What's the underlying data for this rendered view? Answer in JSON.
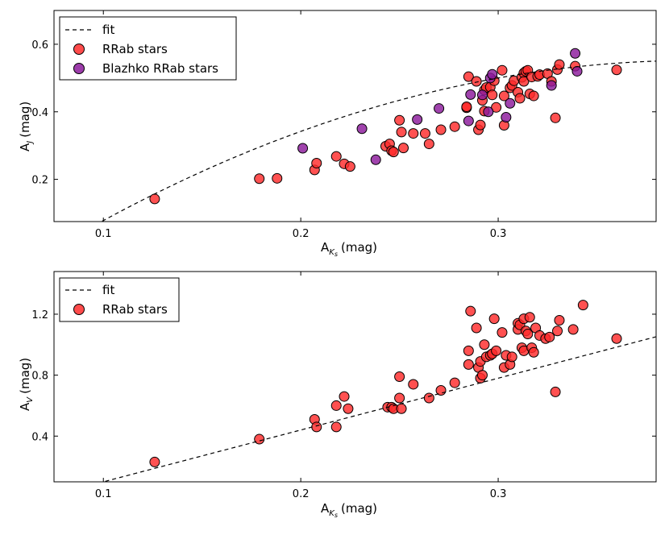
{
  "colors": {
    "rrab": "#ff2b2b",
    "blazhko": "#8b1a9b",
    "fit": "#000000",
    "edge": "#000000"
  },
  "chart_data": [
    {
      "type": "scatter",
      "title": "",
      "xlabel": "A",
      "xlabel_sub": "K",
      "xlabel_subsub": "s",
      "xlabel_unit": "(mag)",
      "ylabel": "A",
      "ylabel_sub": "J",
      "ylabel_unit": "(mag)",
      "xlim": [
        0.075,
        0.38
      ],
      "ylim": [
        0.075,
        0.7
      ],
      "xticks": [
        0.1,
        0.2,
        0.3
      ],
      "xtick_labels": [
        "0.1",
        "0.2",
        "0.3"
      ],
      "yticks": [
        0.2,
        0.4,
        0.6
      ],
      "ytick_labels": [
        "0.2",
        "0.4",
        "0.6"
      ],
      "legend_position": "top-left",
      "legend": [
        "fit",
        "RRab stars",
        "Blazhko RRab stars"
      ],
      "fit": {
        "name": "fit",
        "coeffs": [
          -0.292,
          4.23,
          -5.3
        ]
      },
      "series": [
        {
          "name": "RRab stars",
          "color_key": "rrab",
          "points": [
            [
              0.126,
              0.142
            ],
            [
              0.179,
              0.202
            ],
            [
              0.188,
              0.203
            ],
            [
              0.207,
              0.228
            ],
            [
              0.208,
              0.248
            ],
            [
              0.218,
              0.268
            ],
            [
              0.222,
              0.246
            ],
            [
              0.225,
              0.238
            ],
            [
              0.243,
              0.298
            ],
            [
              0.245,
              0.305
            ],
            [
              0.246,
              0.285
            ],
            [
              0.247,
              0.281
            ],
            [
              0.25,
              0.375
            ],
            [
              0.251,
              0.34
            ],
            [
              0.252,
              0.293
            ],
            [
              0.257,
              0.336
            ],
            [
              0.263,
              0.336
            ],
            [
              0.265,
              0.305
            ],
            [
              0.271,
              0.347
            ],
            [
              0.278,
              0.356
            ],
            [
              0.284,
              0.412
            ],
            [
              0.284,
              0.415
            ],
            [
              0.285,
              0.504
            ],
            [
              0.289,
              0.49
            ],
            [
              0.29,
              0.347
            ],
            [
              0.291,
              0.361
            ],
            [
              0.292,
              0.434
            ],
            [
              0.293,
              0.402
            ],
            [
              0.293,
              0.464
            ],
            [
              0.294,
              0.472
            ],
            [
              0.296,
              0.473
            ],
            [
              0.297,
              0.45
            ],
            [
              0.298,
              0.492
            ],
            [
              0.299,
              0.413
            ],
            [
              0.302,
              0.523
            ],
            [
              0.303,
              0.447
            ],
            [
              0.303,
              0.36
            ],
            [
              0.306,
              0.471
            ],
            [
              0.307,
              0.478
            ],
            [
              0.308,
              0.492
            ],
            [
              0.31,
              0.458
            ],
            [
              0.311,
              0.44
            ],
            [
              0.312,
              0.502
            ],
            [
              0.313,
              0.515
            ],
            [
              0.313,
              0.49
            ],
            [
              0.314,
              0.52
            ],
            [
              0.315,
              0.523
            ],
            [
              0.316,
              0.453
            ],
            [
              0.317,
              0.503
            ],
            [
              0.318,
              0.447
            ],
            [
              0.32,
              0.505
            ],
            [
              0.321,
              0.51
            ],
            [
              0.325,
              0.513
            ],
            [
              0.327,
              0.49
            ],
            [
              0.329,
              0.382
            ],
            [
              0.33,
              0.525
            ],
            [
              0.331,
              0.54
            ],
            [
              0.339,
              0.535
            ],
            [
              0.36,
              0.524
            ]
          ]
        },
        {
          "name": "Blazhko RRab stars",
          "color_key": "blazhko",
          "points": [
            [
              0.201,
              0.292
            ],
            [
              0.231,
              0.35
            ],
            [
              0.238,
              0.258
            ],
            [
              0.259,
              0.377
            ],
            [
              0.27,
              0.41
            ],
            [
              0.285,
              0.373
            ],
            [
              0.286,
              0.451
            ],
            [
              0.292,
              0.45
            ],
            [
              0.295,
              0.4
            ],
            [
              0.296,
              0.5
            ],
            [
              0.297,
              0.511
            ],
            [
              0.304,
              0.384
            ],
            [
              0.306,
              0.425
            ],
            [
              0.327,
              0.478
            ],
            [
              0.339,
              0.573
            ],
            [
              0.34,
              0.52
            ]
          ]
        }
      ]
    },
    {
      "type": "scatter",
      "title": "",
      "xlabel": "A",
      "xlabel_sub": "K",
      "xlabel_subsub": "s",
      "xlabel_unit": "(mag)",
      "ylabel": "A",
      "ylabel_sub": "V",
      "ylabel_unit": "(mag)",
      "xlim": [
        0.075,
        0.38
      ],
      "ylim": [
        0.1,
        1.48
      ],
      "xticks": [
        0.1,
        0.2,
        0.3
      ],
      "xtick_labels": [
        "0.1",
        "0.2",
        "0.3"
      ],
      "yticks": [
        0.4,
        0.8,
        1.2
      ],
      "ytick_labels": [
        "0.4",
        "0.8",
        "1.2"
      ],
      "legend_position": "top-left",
      "legend": [
        "fit",
        "RRab stars"
      ],
      "fit": {
        "name": "fit",
        "coeffs": [
          -0.24,
          3.4,
          0.0
        ]
      },
      "series": [
        {
          "name": "RRab stars",
          "color_key": "rrab",
          "points": [
            [
              0.126,
              0.23
            ],
            [
              0.179,
              0.38
            ],
            [
              0.207,
              0.51
            ],
            [
              0.208,
              0.46
            ],
            [
              0.218,
              0.6
            ],
            [
              0.218,
              0.46
            ],
            [
              0.222,
              0.66
            ],
            [
              0.224,
              0.58
            ],
            [
              0.244,
              0.59
            ],
            [
              0.246,
              0.59
            ],
            [
              0.247,
              0.58
            ],
            [
              0.25,
              0.79
            ],
            [
              0.25,
              0.65
            ],
            [
              0.251,
              0.58
            ],
            [
              0.257,
              0.74
            ],
            [
              0.265,
              0.65
            ],
            [
              0.271,
              0.7
            ],
            [
              0.278,
              0.75
            ],
            [
              0.285,
              0.96
            ],
            [
              0.285,
              0.87
            ],
            [
              0.286,
              1.22
            ],
            [
              0.289,
              1.11
            ],
            [
              0.29,
              0.85
            ],
            [
              0.291,
              0.78
            ],
            [
              0.291,
              0.89
            ],
            [
              0.292,
              0.8
            ],
            [
              0.293,
              1.0
            ],
            [
              0.294,
              0.92
            ],
            [
              0.296,
              0.93
            ],
            [
              0.297,
              0.94
            ],
            [
              0.298,
              1.17
            ],
            [
              0.299,
              0.96
            ],
            [
              0.302,
              1.08
            ],
            [
              0.303,
              0.85
            ],
            [
              0.304,
              0.93
            ],
            [
              0.306,
              0.87
            ],
            [
              0.307,
              0.92
            ],
            [
              0.31,
              1.14
            ],
            [
              0.31,
              1.1
            ],
            [
              0.311,
              1.13
            ],
            [
              0.312,
              0.98
            ],
            [
              0.313,
              0.96
            ],
            [
              0.313,
              1.17
            ],
            [
              0.314,
              1.09
            ],
            [
              0.315,
              1.07
            ],
            [
              0.316,
              1.18
            ],
            [
              0.317,
              0.98
            ],
            [
              0.318,
              0.95
            ],
            [
              0.319,
              1.11
            ],
            [
              0.321,
              1.06
            ],
            [
              0.324,
              1.04
            ],
            [
              0.326,
              1.05
            ],
            [
              0.329,
              0.69
            ],
            [
              0.33,
              1.09
            ],
            [
              0.331,
              1.16
            ],
            [
              0.338,
              1.1
            ],
            [
              0.343,
              1.26
            ],
            [
              0.36,
              1.04
            ]
          ]
        }
      ]
    }
  ]
}
